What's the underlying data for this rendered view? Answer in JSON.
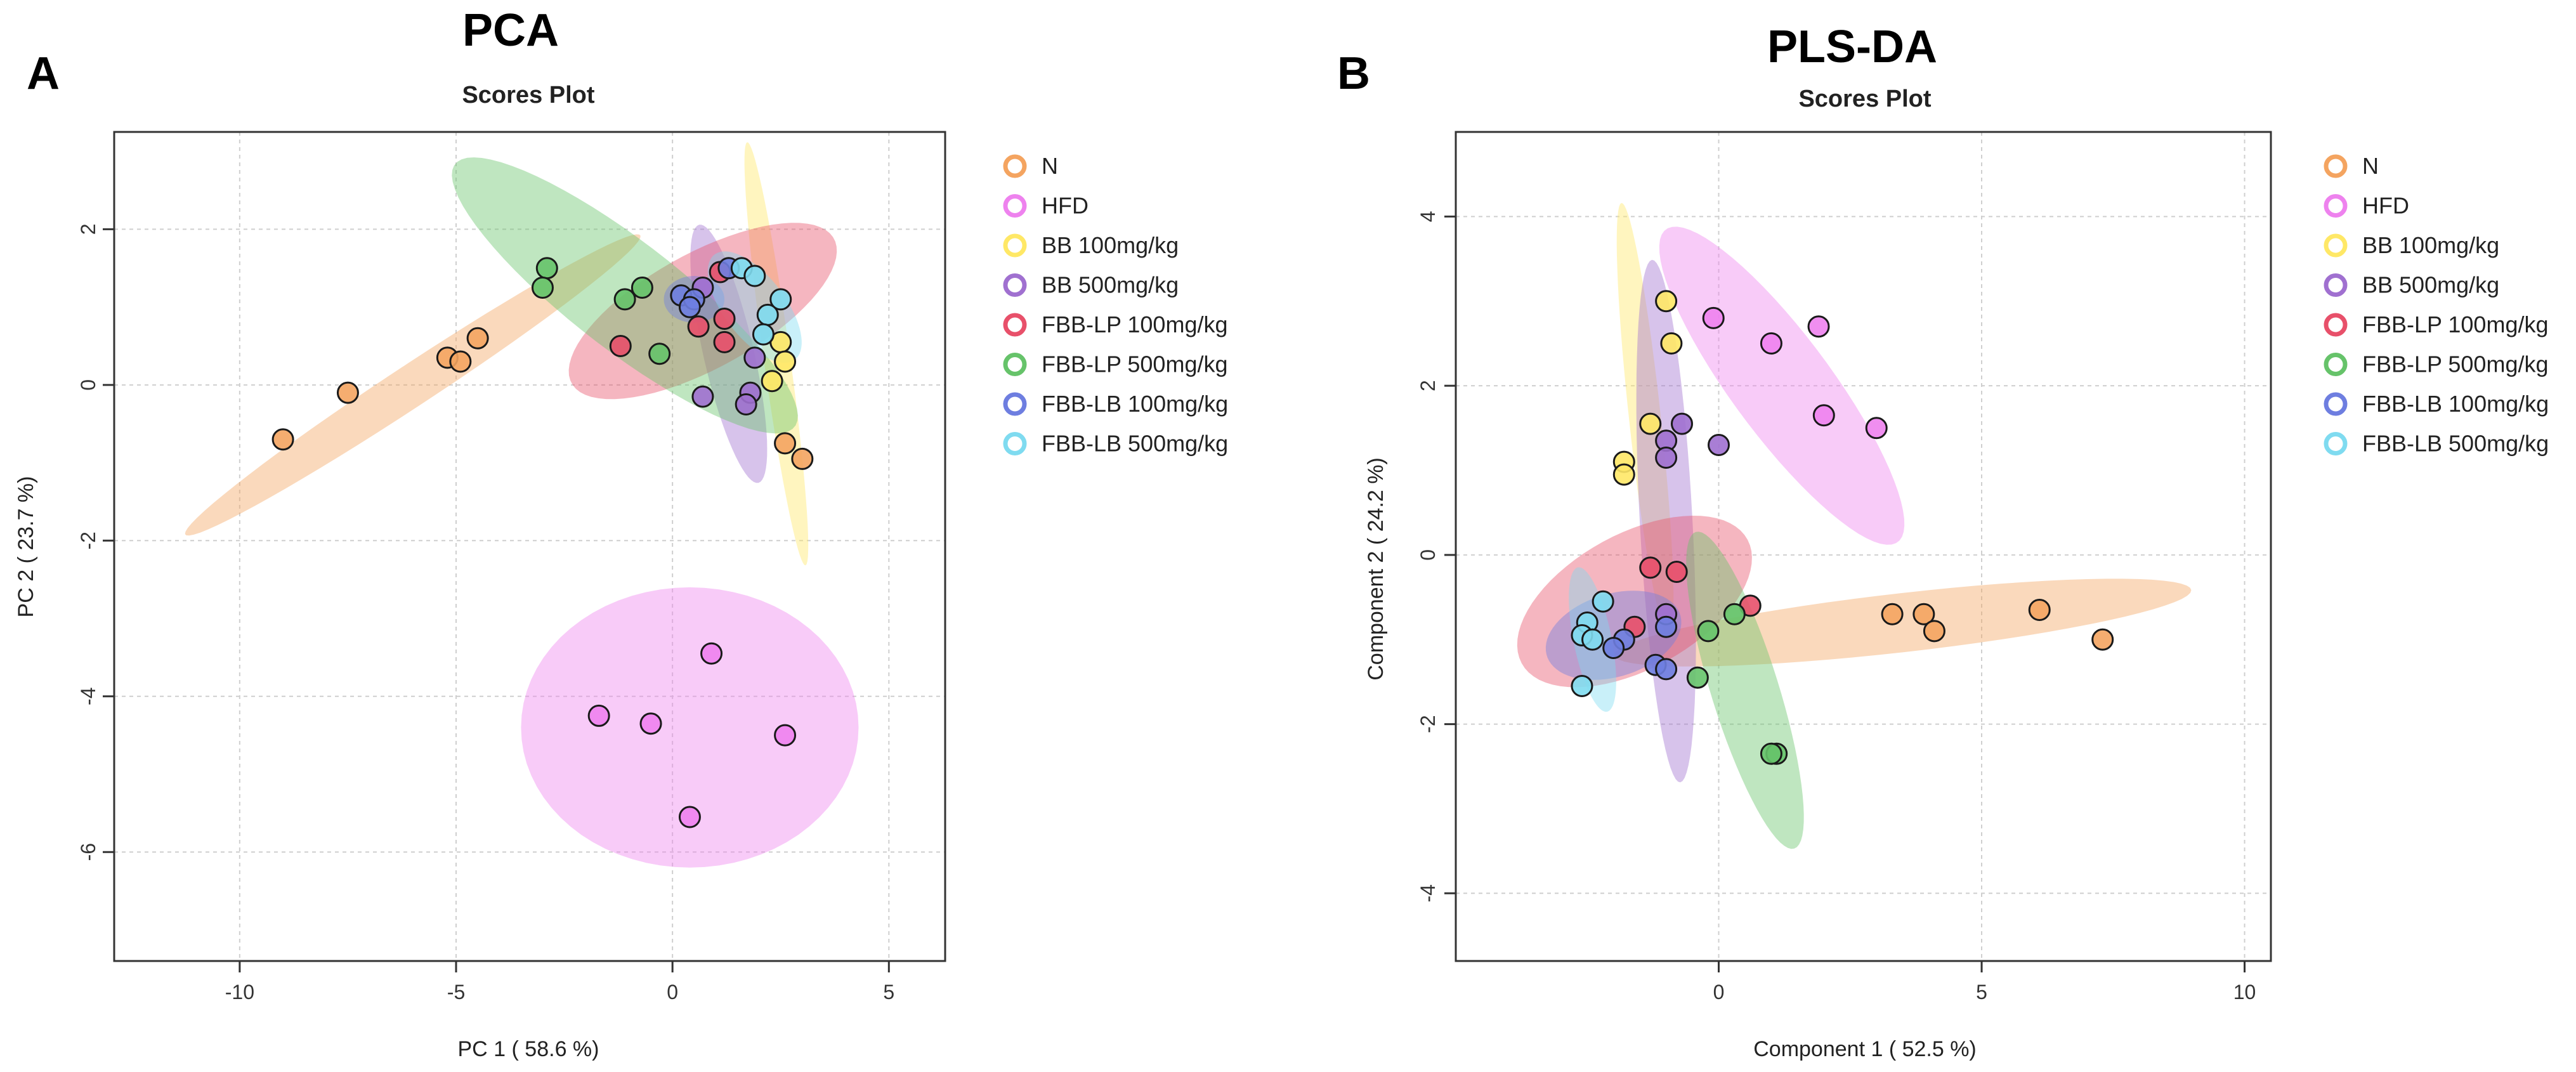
{
  "figure": {
    "panel_a": {
      "letter": "A",
      "heading": "PCA"
    },
    "panel_b": {
      "letter": "B",
      "heading": "PLS-DA"
    }
  },
  "legend": [
    {
      "label": "N",
      "color": "#F4A460"
    },
    {
      "label": "HFD",
      "color": "#EE82EE"
    },
    {
      "label": "BB 100mg/kg",
      "color": "#FFE866"
    },
    {
      "label": "BB 500mg/kg",
      "color": "#A070D0"
    },
    {
      "label": "FBB-LP 100mg/kg",
      "color": "#E8506A"
    },
    {
      "label": "FBB-LP 500mg/kg",
      "color": "#66C36A"
    },
    {
      "label": "FBB-LB 100mg/kg",
      "color": "#6E7EE0"
    },
    {
      "label": "FBB-LB 500mg/kg",
      "color": "#7FDBF0"
    }
  ],
  "chart_data": [
    {
      "type": "scatter",
      "title": "Scores Plot",
      "xlabel": "PC 1 ( 58.6 %)",
      "ylabel": "PC 2 ( 23.7 %)",
      "xlim": [
        -12.9,
        6.3
      ],
      "ylim": [
        -7.4,
        3.25
      ],
      "xticks": [
        -10,
        -5,
        0,
        5
      ],
      "yticks": [
        2,
        0,
        -2,
        -4,
        -6
      ],
      "grid": true,
      "legend_position": "right",
      "ellipses": [
        {
          "group": "N",
          "cx": -6.0,
          "cy": 0.0,
          "a": 5.6,
          "b": 0.3,
          "angle": 20
        },
        {
          "group": "HFD",
          "cx": 0.4,
          "cy": -4.4,
          "a": 3.9,
          "b": 1.8,
          "angle": 0
        },
        {
          "group": "BB 100mg/kg",
          "cx": 2.4,
          "cy": 0.4,
          "a": 2.8,
          "b": 0.3,
          "angle": -76
        },
        {
          "group": "BB 500mg/kg",
          "cx": 1.3,
          "cy": 0.4,
          "a": 1.8,
          "b": 0.55,
          "angle": -66
        },
        {
          "group": "FBB-LP 100mg/kg",
          "cx": 0.7,
          "cy": 0.95,
          "a": 3.2,
          "b": 0.8,
          "angle": 15
        },
        {
          "group": "FBB-LP 500mg/kg",
          "cx": -1.1,
          "cy": 1.15,
          "a": 4.3,
          "b": 0.8,
          "angle": -22
        },
        {
          "group": "FBB-LB 100mg/kg",
          "cx": 0.5,
          "cy": 1.1,
          "a": 0.7,
          "b": 0.3,
          "angle": 0
        },
        {
          "group": "FBB-LB 500mg/kg",
          "cx": 1.9,
          "cy": 1.0,
          "a": 1.2,
          "b": 0.5,
          "angle": -28
        }
      ],
      "series": [
        {
          "name": "N",
          "points": [
            [
              -9.0,
              -0.7
            ],
            [
              -7.5,
              -0.1
            ],
            [
              -5.2,
              0.35
            ],
            [
              -4.9,
              0.3
            ],
            [
              -4.5,
              0.6
            ],
            [
              2.6,
              -0.75
            ],
            [
              3.0,
              -0.95
            ]
          ]
        },
        {
          "name": "HFD",
          "points": [
            [
              0.9,
              -3.45
            ],
            [
              -1.7,
              -4.25
            ],
            [
              -0.5,
              -4.35
            ],
            [
              2.6,
              -4.5
            ],
            [
              0.4,
              -5.55
            ]
          ]
        },
        {
          "name": "BB 100mg/kg",
          "points": [
            [
              2.5,
              0.55
            ],
            [
              2.6,
              0.3
            ],
            [
              2.3,
              0.05
            ]
          ]
        },
        {
          "name": "BB 500mg/kg",
          "points": [
            [
              0.7,
              1.25
            ],
            [
              1.9,
              0.35
            ],
            [
              1.8,
              -0.1
            ],
            [
              1.7,
              -0.25
            ],
            [
              0.7,
              -0.15
            ]
          ]
        },
        {
          "name": "FBB-LP 100mg/kg",
          "points": [
            [
              1.1,
              1.45
            ],
            [
              1.2,
              0.85
            ],
            [
              0.6,
              0.75
            ],
            [
              1.2,
              0.55
            ],
            [
              -1.2,
              0.5
            ]
          ]
        },
        {
          "name": "FBB-LP 500mg/kg",
          "points": [
            [
              -2.9,
              1.5
            ],
            [
              -3.0,
              1.25
            ],
            [
              -1.1,
              1.1
            ],
            [
              -0.7,
              1.25
            ],
            [
              -0.3,
              0.4
            ]
          ]
        },
        {
          "name": "FBB-LB 100mg/kg",
          "points": [
            [
              0.2,
              1.15
            ],
            [
              0.5,
              1.1
            ],
            [
              0.4,
              1.0
            ],
            [
              1.3,
              1.5
            ]
          ]
        },
        {
          "name": "FBB-LB 500mg/kg",
          "points": [
            [
              1.6,
              1.5
            ],
            [
              1.9,
              1.4
            ],
            [
              2.2,
              0.9
            ],
            [
              2.5,
              1.1
            ],
            [
              2.1,
              0.65
            ]
          ]
        }
      ]
    },
    {
      "type": "scatter",
      "title": "Scores Plot",
      "xlabel": "Component 1 ( 52.5 %)",
      "ylabel": "Component 2 ( 24.2 %)",
      "xlim": [
        -5.0,
        10.5
      ],
      "ylim": [
        -4.8,
        5.0
      ],
      "xticks": [
        0,
        5,
        10
      ],
      "yticks": [
        4,
        2,
        0,
        -2,
        -4
      ],
      "grid": true,
      "legend_position": "right",
      "ellipses": [
        {
          "group": "N",
          "cx": 3.5,
          "cy": -0.8,
          "a": 5.5,
          "b": 0.35,
          "angle": 4
        },
        {
          "group": "HFD",
          "cx": 1.2,
          "cy": 2.0,
          "a": 2.9,
          "b": 0.75,
          "angle": -38
        },
        {
          "group": "BB 100mg/kg",
          "cx": -1.4,
          "cy": 1.6,
          "a": 2.6,
          "b": 0.3,
          "angle": -80
        },
        {
          "group": "BB 500mg/kg",
          "cx": -1.0,
          "cy": 0.4,
          "a": 3.1,
          "b": 0.5,
          "angle": -85
        },
        {
          "group": "FBB-LP 100mg/kg",
          "cx": -1.6,
          "cy": -0.55,
          "a": 2.3,
          "b": 0.85,
          "angle": 15
        },
        {
          "group": "FBB-LP 500mg/kg",
          "cx": 0.5,
          "cy": -1.6,
          "a": 2.1,
          "b": 0.6,
          "angle": -62
        },
        {
          "group": "FBB-LB 100mg/kg",
          "cx": -2.0,
          "cy": -0.95,
          "a": 1.3,
          "b": 0.5,
          "angle": 8
        },
        {
          "group": "FBB-LB 500mg/kg",
          "cx": -2.4,
          "cy": -1.0,
          "a": 0.9,
          "b": 0.35,
          "angle": -70
        }
      ],
      "series": [
        {
          "name": "N",
          "points": [
            [
              3.3,
              -0.7
            ],
            [
              3.9,
              -0.7
            ],
            [
              4.1,
              -0.9
            ],
            [
              6.1,
              -0.65
            ],
            [
              7.3,
              -1.0
            ]
          ]
        },
        {
          "name": "HFD",
          "points": [
            [
              -0.1,
              2.8
            ],
            [
              1.0,
              2.5
            ],
            [
              1.9,
              2.7
            ],
            [
              2.0,
              1.65
            ],
            [
              3.0,
              1.5
            ]
          ]
        },
        {
          "name": "BB 100mg/kg",
          "points": [
            [
              -1.0,
              3.0
            ],
            [
              -0.9,
              2.5
            ],
            [
              -1.3,
              1.55
            ],
            [
              -1.8,
              1.1
            ],
            [
              -1.8,
              0.95
            ]
          ]
        },
        {
          "name": "BB 500mg/kg",
          "points": [
            [
              -1.0,
              1.35
            ],
            [
              -1.0,
              1.15
            ],
            [
              -0.7,
              1.55
            ],
            [
              0.0,
              1.3
            ],
            [
              -1.0,
              -0.7
            ]
          ]
        },
        {
          "name": "FBB-LP 100mg/kg",
          "points": [
            [
              -1.3,
              -0.15
            ],
            [
              -0.8,
              -0.2
            ],
            [
              0.6,
              -0.6
            ],
            [
              -1.6,
              -0.85
            ]
          ]
        },
        {
          "name": "FBB-LP 500mg/kg",
          "points": [
            [
              0.3,
              -0.7
            ],
            [
              -0.2,
              -0.9
            ],
            [
              -0.4,
              -1.45
            ],
            [
              1.1,
              -2.35
            ],
            [
              1.0,
              -2.35
            ]
          ]
        },
        {
          "name": "FBB-LB 100mg/kg",
          "points": [
            [
              -1.0,
              -0.85
            ],
            [
              -1.8,
              -1.0
            ],
            [
              -2.0,
              -1.1
            ],
            [
              -1.2,
              -1.3
            ],
            [
              -1.0,
              -1.35
            ]
          ]
        },
        {
          "name": "FBB-LB 500mg/kg",
          "points": [
            [
              -2.2,
              -0.55
            ],
            [
              -2.5,
              -0.8
            ],
            [
              -2.6,
              -0.95
            ],
            [
              -2.4,
              -1.0
            ],
            [
              -2.6,
              -1.55
            ]
          ]
        }
      ]
    }
  ]
}
